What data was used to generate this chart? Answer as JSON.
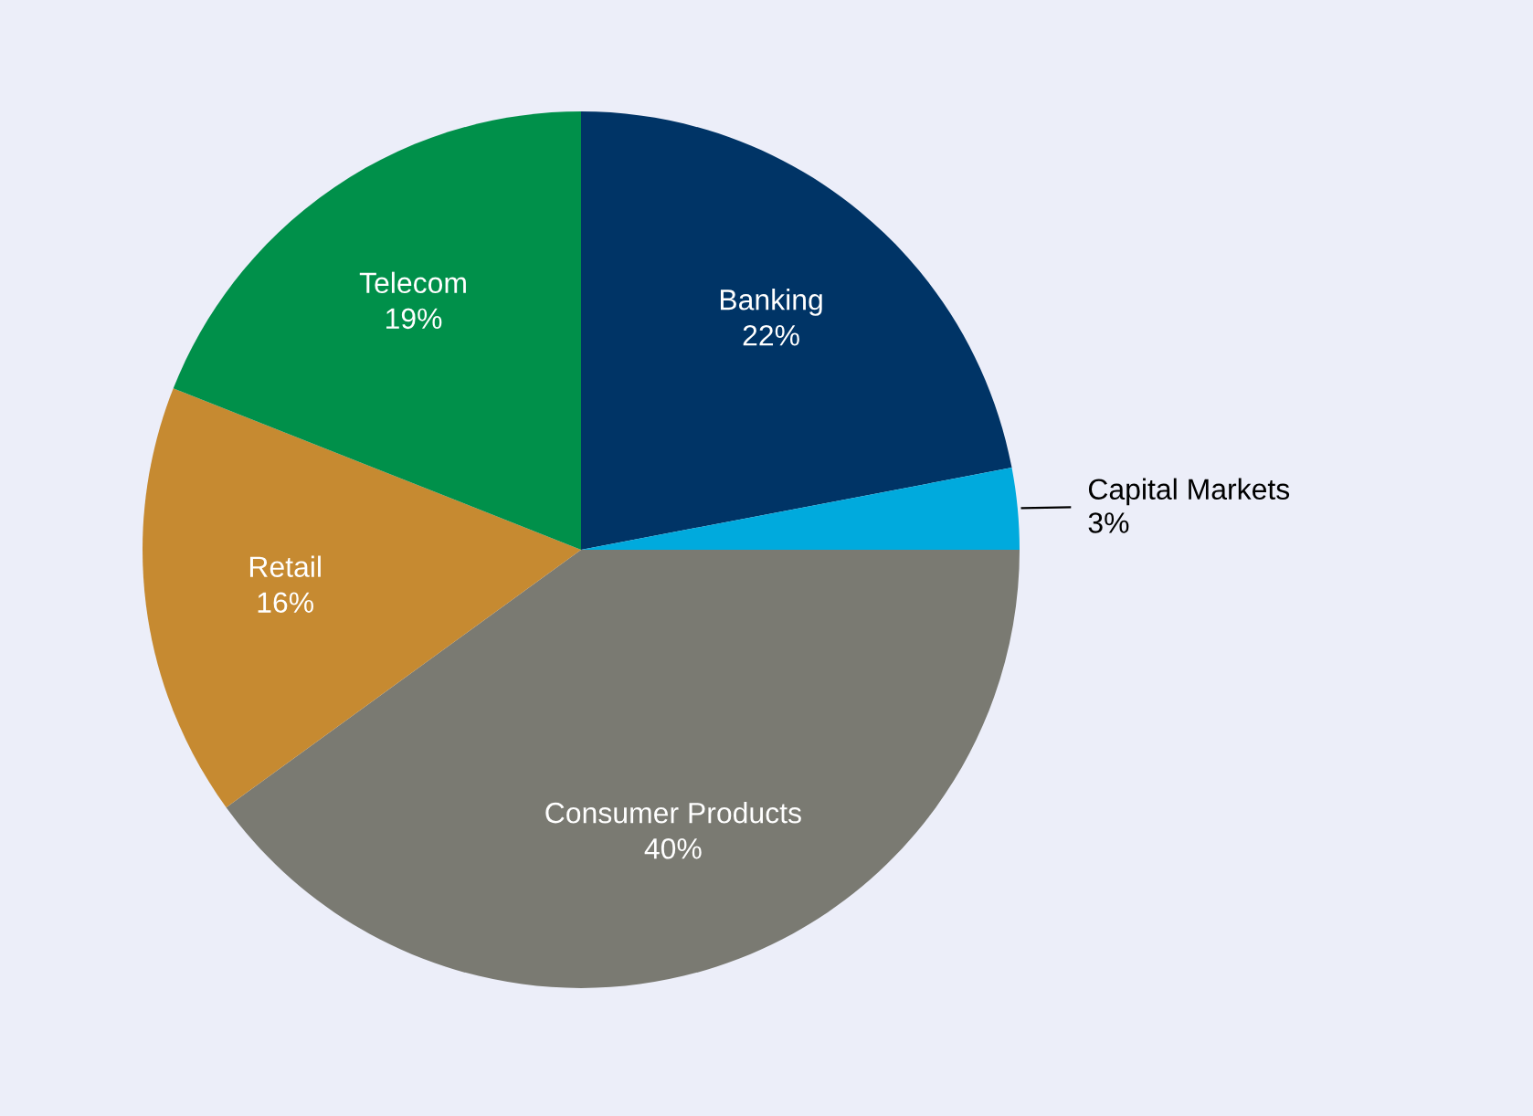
{
  "chart_data": {
    "type": "pie",
    "categories": [
      "Banking",
      "Capital Markets",
      "Consumer Products",
      "Retail",
      "Telecom"
    ],
    "values": [
      22,
      3,
      40,
      16,
      19
    ],
    "value_labels": [
      "22%",
      "3%",
      "40%",
      "16%",
      "19%"
    ],
    "colors": [
      "#003466",
      "#00aadd",
      "#7a7a72",
      "#c68a31",
      "#00904a"
    ],
    "legend": false
  }
}
